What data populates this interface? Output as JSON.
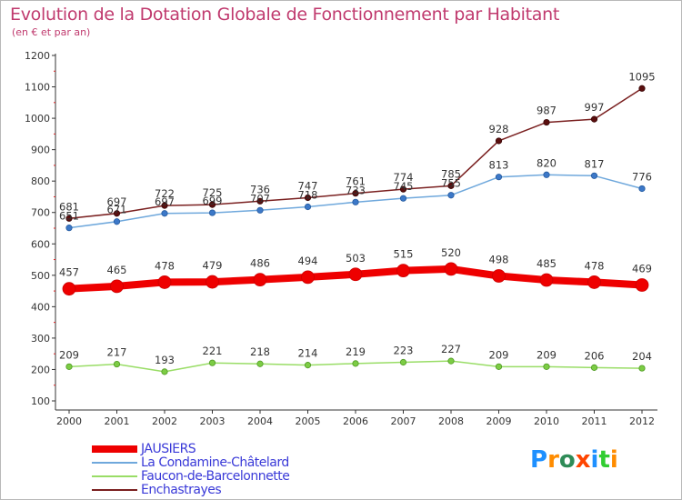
{
  "chart_data": {
    "type": "line",
    "title": "Evolution de la Dotation Globale de Fonctionnement par Habitant",
    "subtitle": "(en € et par an)",
    "x": [
      "2000",
      "2001",
      "2002",
      "2003",
      "2004",
      "2005",
      "2006",
      "2007",
      "2008",
      "2009",
      "2010",
      "2011",
      "2012"
    ],
    "ylim": [
      100,
      1200
    ],
    "yticks": [
      100,
      200,
      300,
      400,
      500,
      600,
      700,
      800,
      900,
      1000,
      1100,
      1200
    ],
    "grid": false,
    "legend_position": "bottom-left",
    "series": [
      {
        "name": "JAUSIERS",
        "color": "#ee0000",
        "values": [
          457,
          465,
          478,
          479,
          486,
          494,
          503,
          515,
          520,
          498,
          485,
          478,
          469
        ]
      },
      {
        "name": "La Condamine-Châtelard",
        "color": "#5b9bd5",
        "values": [
          651,
          671,
          697,
          699,
          707,
          718,
          733,
          745,
          755,
          813,
          820,
          817,
          776
        ]
      },
      {
        "name": "Faucon-de-Barcelonnette",
        "color": "#99dd66",
        "values": [
          209,
          217,
          193,
          221,
          218,
          214,
          219,
          223,
          227,
          209,
          209,
          206,
          204
        ]
      },
      {
        "name": "Enchastrayes",
        "color": "#7a2020",
        "values": [
          681,
          697,
          722,
          725,
          736,
          747,
          761,
          774,
          785,
          928,
          987,
          997,
          1095
        ]
      }
    ]
  },
  "logo": {
    "letters": [
      "P",
      "r",
      "o",
      "x",
      "i",
      "t",
      "i"
    ],
    "colors": [
      "#1e90ff",
      "#ff8c00",
      "#2e8b57",
      "#ff4500",
      "#1e90ff",
      "#32cd32",
      "#ff8c00"
    ]
  }
}
